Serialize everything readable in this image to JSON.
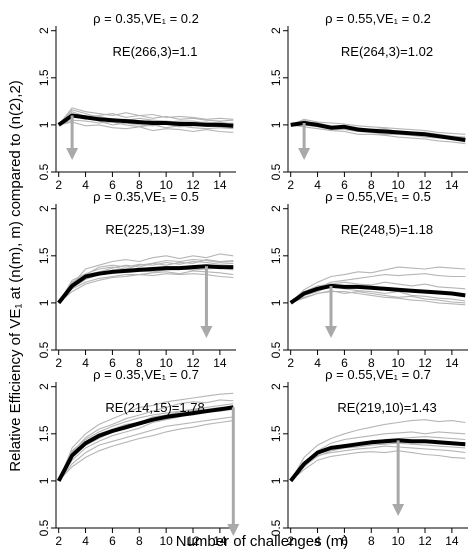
{
  "figure": {
    "ylabel": "Relative Efficiency of VE₁ at (n(m), m) compared to (n(2),2)",
    "xlabel": "Number of challenges (m)"
  },
  "chart_data": [
    {
      "type": "line",
      "title": "ρ = 0.35,VE₁ = 0.2",
      "annotation": "RE(266,3)=1.1",
      "x": [
        2,
        3,
        4,
        5,
        6,
        7,
        8,
        9,
        10,
        11,
        12,
        13,
        14,
        15
      ],
      "xticks": [
        2,
        4,
        6,
        8,
        10,
        12,
        14
      ],
      "yticks": [
        "0.5",
        "1",
        "1.5",
        "2"
      ],
      "xlim": [
        1.8,
        15.2
      ],
      "ylim": [
        0.5,
        2.05
      ],
      "arrow": {
        "x": 3,
        "y": 1.1
      },
      "series": [
        {
          "role": "mean",
          "values": [
            1.0,
            1.1,
            1.08,
            1.06,
            1.05,
            1.04,
            1.03,
            1.02,
            1.02,
            1.01,
            1.01,
            1.0,
            1.0,
            0.99
          ]
        },
        {
          "role": "sim",
          "values": [
            1.0,
            1.14,
            1.09,
            1.1,
            1.12,
            1.08,
            1.1,
            1.11,
            1.08,
            1.09,
            1.08,
            1.06,
            1.07,
            1.06
          ]
        },
        {
          "role": "sim",
          "values": [
            1.0,
            1.16,
            1.12,
            1.08,
            1.04,
            1.06,
            1.03,
            1.05,
            1.04,
            1.03,
            1.02,
            1.03,
            1.01,
            1.02
          ]
        },
        {
          "role": "sim",
          "values": [
            1.0,
            1.08,
            1.1,
            1.04,
            1.0,
            1.02,
            1.0,
            0.99,
            1.01,
            0.98,
            0.99,
            1.0,
            0.98,
            0.97
          ]
        },
        {
          "role": "sim",
          "values": [
            1.0,
            1.05,
            1.04,
            1.02,
            1.03,
            1.0,
            0.98,
            1.0,
            0.97,
            0.99,
            0.97,
            0.96,
            0.97,
            0.96
          ]
        },
        {
          "role": "sim",
          "values": [
            1.0,
            1.18,
            1.14,
            1.12,
            1.1,
            1.13,
            1.1,
            1.07,
            1.09,
            1.06,
            1.07,
            1.05,
            1.04,
            1.05
          ]
        },
        {
          "role": "sim",
          "values": [
            1.0,
            1.03,
            0.99,
            1.0,
            0.97,
            0.96,
            0.98,
            0.94,
            0.96,
            0.95,
            0.93,
            0.95,
            0.93,
            0.92
          ]
        },
        {
          "role": "sim",
          "values": [
            1.0,
            1.1,
            1.06,
            1.09,
            1.06,
            1.05,
            1.07,
            1.05,
            1.03,
            1.04,
            1.04,
            1.02,
            1.03,
            1.01
          ]
        }
      ]
    },
    {
      "type": "line",
      "title": "ρ = 0.55,VE₁ = 0.2",
      "annotation": "RE(264,3)=1.02",
      "x": [
        2,
        3,
        4,
        5,
        6,
        7,
        8,
        9,
        10,
        11,
        12,
        13,
        14,
        15
      ],
      "xticks": [
        2,
        4,
        6,
        8,
        10,
        12,
        14
      ],
      "yticks": [
        "0.5",
        "1",
        "1.5",
        "2"
      ],
      "xlim": [
        1.8,
        15.2
      ],
      "ylim": [
        0.5,
        2.05
      ],
      "arrow": {
        "x": 3,
        "y": 1.02
      },
      "series": [
        {
          "role": "mean",
          "values": [
            1.0,
            1.02,
            1.0,
            0.97,
            0.98,
            0.95,
            0.94,
            0.93,
            0.92,
            0.91,
            0.9,
            0.88,
            0.86,
            0.84
          ]
        },
        {
          "role": "sim",
          "values": [
            1.0,
            1.06,
            1.03,
            1.02,
            1.01,
            0.99,
            0.98,
            0.97,
            0.96,
            0.95,
            0.94,
            0.92,
            0.91,
            0.9
          ]
        },
        {
          "role": "sim",
          "values": [
            1.0,
            1.05,
            1.0,
            0.96,
            0.99,
            0.97,
            0.95,
            0.96,
            0.93,
            0.92,
            0.92,
            0.9,
            0.88,
            0.87
          ]
        },
        {
          "role": "sim",
          "values": [
            1.0,
            1.0,
            0.98,
            0.95,
            0.95,
            0.93,
            0.92,
            0.9,
            0.9,
            0.89,
            0.87,
            0.86,
            0.85,
            0.82
          ]
        },
        {
          "role": "sim",
          "values": [
            1.0,
            0.98,
            0.96,
            0.94,
            0.93,
            0.9,
            0.9,
            0.89,
            0.87,
            0.86,
            0.85,
            0.83,
            0.82,
            0.8
          ]
        },
        {
          "role": "sim",
          "values": [
            1.0,
            1.03,
            1.02,
            0.99,
            0.97,
            0.96,
            0.95,
            0.93,
            0.93,
            0.92,
            0.9,
            0.89,
            0.88,
            0.86
          ]
        }
      ]
    },
    {
      "type": "line",
      "title": "ρ = 0.35,VE₁ = 0.5",
      "annotation": "RE(225,13)=1.39",
      "x": [
        2,
        3,
        4,
        5,
        6,
        7,
        8,
        9,
        10,
        11,
        12,
        13,
        14,
        15
      ],
      "xticks": [
        2,
        4,
        6,
        8,
        10,
        12,
        14
      ],
      "yticks": [
        "0.5",
        "1",
        "1.5",
        "2"
      ],
      "xlim": [
        1.8,
        15.2
      ],
      "ylim": [
        0.5,
        2.05
      ],
      "arrow": {
        "x": 13,
        "y": 1.39
      },
      "series": [
        {
          "role": "mean",
          "values": [
            1.0,
            1.18,
            1.28,
            1.31,
            1.33,
            1.34,
            1.35,
            1.36,
            1.37,
            1.37,
            1.38,
            1.39,
            1.38,
            1.38
          ]
        },
        {
          "role": "sim",
          "values": [
            1.0,
            1.2,
            1.36,
            1.4,
            1.44,
            1.46,
            1.44,
            1.48,
            1.5,
            1.47,
            1.5,
            1.48,
            1.52,
            1.5
          ]
        },
        {
          "role": "sim",
          "values": [
            1.0,
            1.15,
            1.22,
            1.26,
            1.28,
            1.3,
            1.3,
            1.32,
            1.33,
            1.31,
            1.34,
            1.33,
            1.32,
            1.3
          ]
        },
        {
          "role": "sim",
          "values": [
            1.0,
            1.24,
            1.31,
            1.36,
            1.38,
            1.36,
            1.4,
            1.42,
            1.4,
            1.43,
            1.42,
            1.46,
            1.44,
            1.45
          ]
        },
        {
          "role": "sim",
          "values": [
            1.0,
            1.12,
            1.2,
            1.24,
            1.27,
            1.28,
            1.3,
            1.29,
            1.31,
            1.3,
            1.31,
            1.3,
            1.28,
            1.27
          ]
        },
        {
          "role": "sim",
          "values": [
            1.0,
            1.2,
            1.3,
            1.33,
            1.37,
            1.4,
            1.38,
            1.42,
            1.45,
            1.44,
            1.46,
            1.45,
            1.43,
            1.44
          ]
        },
        {
          "role": "sim",
          "values": [
            1.0,
            1.16,
            1.25,
            1.3,
            1.31,
            1.33,
            1.34,
            1.33,
            1.35,
            1.36,
            1.35,
            1.36,
            1.37,
            1.35
          ]
        },
        {
          "role": "sim",
          "values": [
            1.0,
            1.22,
            1.3,
            1.38,
            1.4,
            1.38,
            1.41,
            1.4,
            1.43,
            1.41,
            1.44,
            1.43,
            1.41,
            1.42
          ]
        }
      ]
    },
    {
      "type": "line",
      "title": "ρ = 0.55,VE₁ = 0.5",
      "annotation": "RE(248,5)=1.18",
      "x": [
        2,
        3,
        4,
        5,
        6,
        7,
        8,
        9,
        10,
        11,
        12,
        13,
        14,
        15
      ],
      "xticks": [
        2,
        4,
        6,
        8,
        10,
        12,
        14
      ],
      "yticks": [
        "0.5",
        "1",
        "1.5",
        "2"
      ],
      "xlim": [
        1.8,
        15.2
      ],
      "ylim": [
        0.5,
        2.05
      ],
      "arrow": {
        "x": 5,
        "y": 1.18
      },
      "series": [
        {
          "role": "mean",
          "values": [
            1.0,
            1.1,
            1.15,
            1.18,
            1.17,
            1.17,
            1.16,
            1.15,
            1.14,
            1.13,
            1.12,
            1.11,
            1.1,
            1.08
          ]
        },
        {
          "role": "sim",
          "values": [
            1.0,
            1.14,
            1.22,
            1.28,
            1.3,
            1.33,
            1.32,
            1.35,
            1.38,
            1.37,
            1.36,
            1.38,
            1.37,
            1.36
          ]
        },
        {
          "role": "sim",
          "values": [
            1.0,
            1.1,
            1.16,
            1.22,
            1.24,
            1.26,
            1.28,
            1.3,
            1.29,
            1.3,
            1.31,
            1.29,
            1.28,
            1.28
          ]
        },
        {
          "role": "sim",
          "values": [
            1.0,
            1.08,
            1.12,
            1.18,
            1.15,
            1.13,
            1.12,
            1.1,
            1.12,
            1.08,
            1.07,
            1.05,
            1.04,
            1.02
          ]
        },
        {
          "role": "sim",
          "values": [
            1.0,
            1.05,
            1.1,
            1.12,
            1.12,
            1.1,
            1.08,
            1.06,
            1.05,
            1.03,
            1.02,
            1.0,
            0.99,
            0.98
          ]
        },
        {
          "role": "sim",
          "values": [
            1.0,
            1.12,
            1.18,
            1.2,
            1.22,
            1.2,
            1.19,
            1.22,
            1.2,
            1.18,
            1.2,
            1.17,
            1.16,
            1.15
          ]
        },
        {
          "role": "sim",
          "values": [
            1.0,
            1.06,
            1.1,
            1.13,
            1.1,
            1.12,
            1.1,
            1.08,
            1.06,
            1.07,
            1.04,
            1.03,
            1.01,
            1.0
          ]
        }
      ]
    },
    {
      "type": "line",
      "title": "ρ = 0.35,VE₁ = 0.7",
      "annotation": "RE(214,15)=1.78",
      "x": [
        2,
        3,
        4,
        5,
        6,
        7,
        8,
        9,
        10,
        11,
        12,
        13,
        14,
        15
      ],
      "xticks": [
        2,
        4,
        6,
        8,
        10,
        12,
        14
      ],
      "yticks": [
        "0.5",
        "1",
        "1.5",
        "2"
      ],
      "xlim": [
        1.8,
        15.2
      ],
      "ylim": [
        0.5,
        2.05
      ],
      "arrow": {
        "x": 15,
        "y": 1.78
      },
      "series": [
        {
          "role": "mean",
          "values": [
            1.0,
            1.27,
            1.4,
            1.48,
            1.53,
            1.57,
            1.61,
            1.65,
            1.68,
            1.7,
            1.72,
            1.74,
            1.76,
            1.78
          ]
        },
        {
          "role": "sim",
          "values": [
            1.0,
            1.35,
            1.5,
            1.6,
            1.66,
            1.72,
            1.78,
            1.8,
            1.84,
            1.86,
            1.88,
            1.9,
            1.92,
            1.93
          ]
        },
        {
          "role": "sim",
          "values": [
            1.0,
            1.3,
            1.46,
            1.55,
            1.6,
            1.66,
            1.7,
            1.74,
            1.78,
            1.82,
            1.84,
            1.83,
            1.86,
            1.85
          ]
        },
        {
          "role": "sim",
          "values": [
            1.0,
            1.22,
            1.35,
            1.42,
            1.48,
            1.52,
            1.56,
            1.62,
            1.65,
            1.68,
            1.72,
            1.75,
            1.77,
            1.8
          ]
        },
        {
          "role": "sim",
          "values": [
            1.0,
            1.18,
            1.3,
            1.38,
            1.42,
            1.46,
            1.5,
            1.54,
            1.58,
            1.6,
            1.62,
            1.64,
            1.66,
            1.68
          ]
        },
        {
          "role": "sim",
          "values": [
            1.0,
            1.26,
            1.38,
            1.45,
            1.52,
            1.55,
            1.6,
            1.64,
            1.66,
            1.69,
            1.7,
            1.73,
            1.74,
            1.76
          ]
        },
        {
          "role": "sim",
          "values": [
            1.0,
            1.32,
            1.44,
            1.52,
            1.58,
            1.63,
            1.67,
            1.7,
            1.72,
            1.74,
            1.76,
            1.78,
            1.8,
            1.82
          ]
        },
        {
          "role": "sim",
          "values": [
            1.0,
            1.15,
            1.25,
            1.32,
            1.37,
            1.41,
            1.45,
            1.48,
            1.52,
            1.55,
            1.57,
            1.6,
            1.62,
            1.64
          ]
        },
        {
          "role": "sim",
          "values": [
            1.0,
            1.3,
            1.42,
            1.5,
            1.55,
            1.6,
            1.62,
            1.68,
            1.7,
            1.73,
            1.75,
            1.76,
            1.78,
            1.79
          ]
        }
      ]
    },
    {
      "type": "line",
      "title": "ρ = 0.55,VE₁ = 0.7",
      "annotation": "RE(219,10)=1.43",
      "x": [
        2,
        3,
        4,
        5,
        6,
        7,
        8,
        9,
        10,
        11,
        12,
        13,
        14,
        15
      ],
      "xticks": [
        2,
        4,
        6,
        8,
        10,
        12,
        14
      ],
      "yticks": [
        "0.5",
        "1",
        "1.5",
        "2"
      ],
      "xlim": [
        1.8,
        15.2
      ],
      "ylim": [
        0.5,
        2.05
      ],
      "arrow": {
        "x": 10,
        "y": 1.43
      },
      "series": [
        {
          "role": "mean",
          "values": [
            1.0,
            1.18,
            1.3,
            1.35,
            1.37,
            1.39,
            1.41,
            1.42,
            1.43,
            1.42,
            1.42,
            1.41,
            1.4,
            1.39
          ]
        },
        {
          "role": "sim",
          "values": [
            1.0,
            1.25,
            1.38,
            1.45,
            1.5,
            1.54,
            1.57,
            1.6,
            1.62,
            1.64,
            1.65,
            1.63,
            1.64,
            1.62
          ]
        },
        {
          "role": "sim",
          "values": [
            1.0,
            1.2,
            1.32,
            1.4,
            1.44,
            1.46,
            1.48,
            1.5,
            1.51,
            1.52,
            1.5,
            1.52,
            1.51,
            1.5
          ]
        },
        {
          "role": "sim",
          "values": [
            1.0,
            1.15,
            1.27,
            1.3,
            1.32,
            1.34,
            1.35,
            1.37,
            1.36,
            1.35,
            1.34,
            1.33,
            1.32,
            1.3
          ]
        },
        {
          "role": "sim",
          "values": [
            1.0,
            1.12,
            1.22,
            1.26,
            1.28,
            1.3,
            1.31,
            1.3,
            1.32,
            1.3,
            1.28,
            1.27,
            1.25,
            1.24
          ]
        },
        {
          "role": "sim",
          "values": [
            1.0,
            1.2,
            1.3,
            1.36,
            1.38,
            1.4,
            1.42,
            1.44,
            1.45,
            1.46,
            1.47,
            1.46,
            1.45,
            1.44
          ]
        },
        {
          "role": "sim",
          "values": [
            1.0,
            1.16,
            1.26,
            1.32,
            1.35,
            1.36,
            1.38,
            1.39,
            1.4,
            1.39,
            1.38,
            1.37,
            1.36,
            1.35
          ]
        }
      ]
    }
  ]
}
